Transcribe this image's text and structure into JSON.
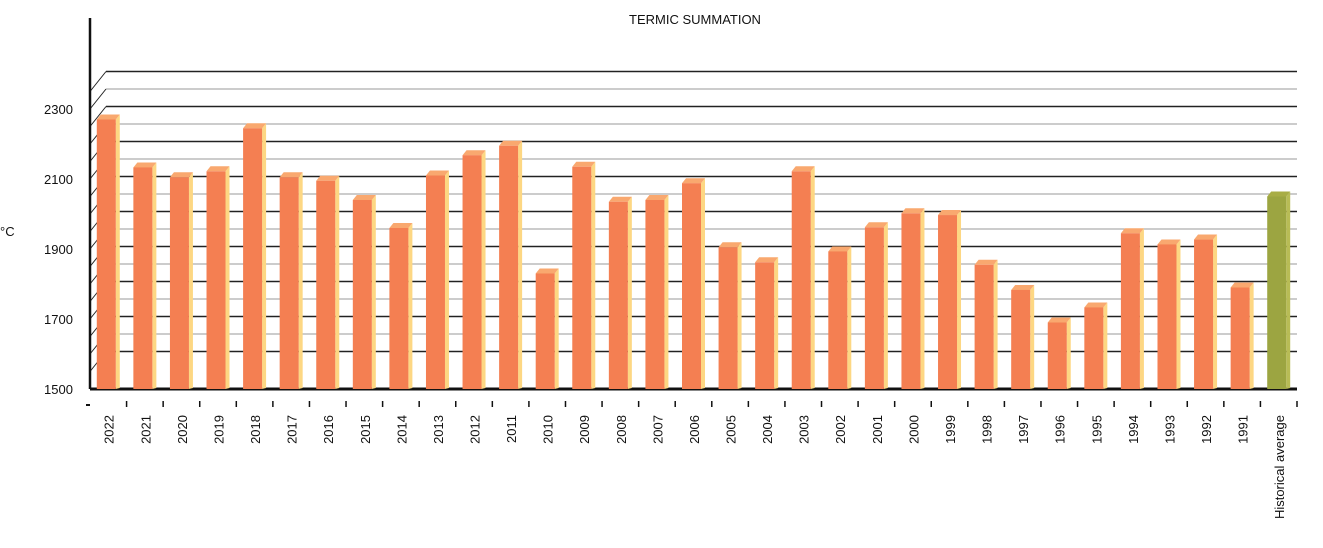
{
  "chart_data": {
    "type": "bar",
    "title": "TERMIC SUMMATION",
    "ylabel": "°C",
    "ylim": [
      1500,
      2380
    ],
    "yticks": [
      1500,
      1700,
      1900,
      2100,
      2300
    ],
    "grid": true,
    "categories": [
      "2022",
      "2021",
      "2020",
      "2019",
      "2018",
      "2017",
      "2016",
      "2015",
      "2014",
      "2013",
      "2012",
      "2011",
      "2010",
      "2009",
      "2008",
      "2007",
      "2006",
      "2005",
      "2004",
      "2003",
      "2002",
      "2001",
      "2000",
      "1999",
      "1998",
      "1997",
      "1996",
      "1995",
      "1994",
      "1993",
      "1992",
      "1991",
      "Historical average"
    ],
    "values": [
      2270,
      2133,
      2105,
      2122,
      2245,
      2105,
      2095,
      2040,
      1960,
      2110,
      2168,
      2195,
      1830,
      2135,
      2035,
      2040,
      2088,
      1905,
      1862,
      2122,
      1893,
      1962,
      2002,
      1997,
      1855,
      1783,
      1690,
      1733,
      1945,
      1913,
      1927,
      1790,
      2050
    ]
  },
  "colors": {
    "bar_front": "#f47f52",
    "bar_top": "#f9a86f",
    "bar_side": "#fdd783",
    "avg_front": "#9ca541",
    "avg_top": "#a8ad45",
    "avg_side": "#b8bc55",
    "grid": "#999999",
    "grid_back": "#222222",
    "axis": "#111111"
  }
}
